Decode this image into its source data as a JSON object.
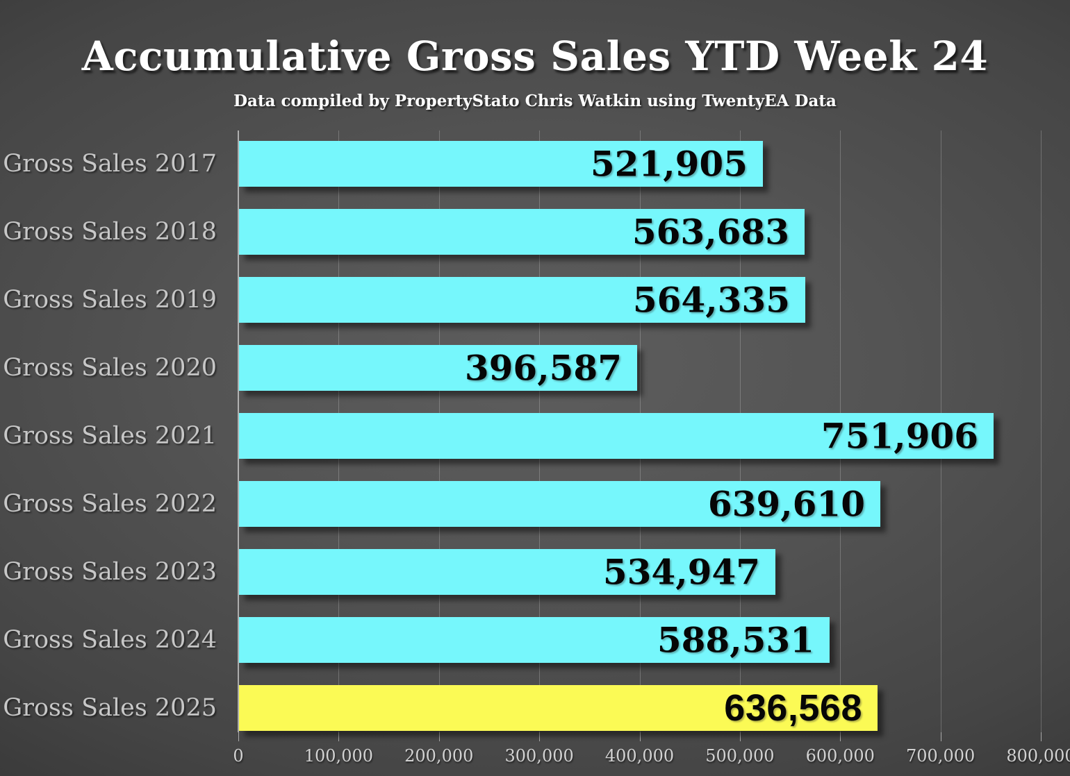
{
  "slide": {
    "title": "Accumulative Gross Sales YTD Week 24",
    "subtitle": "Data compiled by PropertyStato Chris Watkin using TwentyEA Data"
  },
  "chart_data": {
    "type": "bar",
    "orientation": "horizontal",
    "title": "Accumulative Gross Sales YTD Week 24",
    "subtitle": "Data compiled by PropertyStato Chris Watkin using TwentyEA Data",
    "categories": [
      "Gross Sales 2017",
      "Gross Sales 2018",
      "Gross Sales 2019",
      "Gross Sales 2020",
      "Gross Sales 2021",
      "Gross Sales 2022",
      "Gross Sales 2023",
      "Gross Sales 2024",
      "Gross Sales 2025"
    ],
    "values": [
      521905,
      563683,
      564335,
      396587,
      751906,
      639610,
      534947,
      588531,
      636568
    ],
    "value_labels": [
      "521,905",
      "563,683",
      "564,335",
      "396,587",
      "751,906",
      "639,610",
      "534,947",
      "588,531",
      "636,568"
    ],
    "xlim": [
      0,
      800000
    ],
    "x_tick_interval": 100000,
    "x_tick_labels": [
      "0",
      "100,000",
      "200,000",
      "300,000",
      "400,000",
      "500,000",
      "600,000",
      "700,000",
      "800,000"
    ],
    "grid": true,
    "legend": false,
    "bar_color": "#76F7FC",
    "highlight_index": 8,
    "highlight_color": "#FBFA55",
    "value_text_color": "#060606",
    "category_label_color": "#c7c7c7",
    "tick_label_color": "#d2d2d2"
  }
}
